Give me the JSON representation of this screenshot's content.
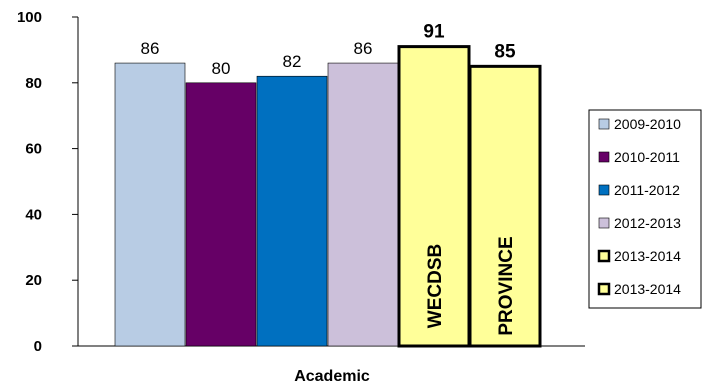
{
  "chart_data": {
    "type": "bar",
    "xlabel": "Academic",
    "ylim": [
      0,
      100
    ],
    "yticks": [
      "0",
      "20",
      "40",
      "60",
      "80",
      "100"
    ],
    "legend_position": "right",
    "series": [
      {
        "name": "2009-2010",
        "value": 86,
        "color": "#b8cce4",
        "edge": "#000000",
        "label": "86",
        "bold": false,
        "inside": ""
      },
      {
        "name": "2010-2011",
        "value": 80,
        "color": "#660066",
        "edge": "#000000",
        "label": "80",
        "bold": false,
        "inside": ""
      },
      {
        "name": "2011-2012",
        "value": 82,
        "color": "#0070c0",
        "edge": "#000000",
        "label": "82",
        "bold": false,
        "inside": ""
      },
      {
        "name": "2012-2013",
        "value": 86,
        "color": "#ccc0da",
        "edge": "#000000",
        "label": "86",
        "bold": false,
        "inside": ""
      },
      {
        "name": "2013-2014",
        "value": 91,
        "color": "#ffff99",
        "edge": "#000000",
        "label": "91",
        "bold": true,
        "inside": "WECDSB"
      },
      {
        "name": "2013-2014",
        "value": 85,
        "color": "#ffff99",
        "edge": "#000000",
        "label": "85",
        "bold": true,
        "inside": "PROVINCE"
      }
    ]
  }
}
